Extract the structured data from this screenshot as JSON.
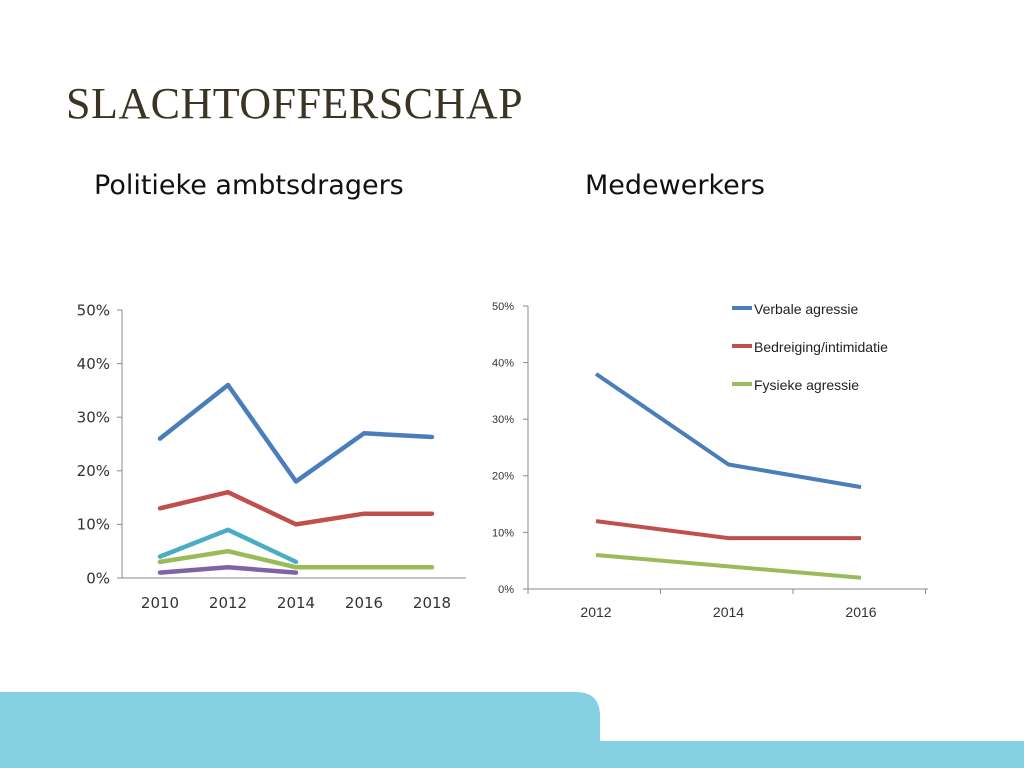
{
  "slide": {
    "title": "SLACHTOFFERSCHAP",
    "colors": {
      "band": "#86d1e1",
      "title": "#3a3424"
    }
  },
  "chart_data": [
    {
      "type": "line",
      "title": "Politieke ambtsdragers",
      "x": [
        2010,
        2012,
        2014,
        2016,
        2018
      ],
      "x_ticks": [
        "2010",
        "2012",
        "2014",
        "2016",
        "2018"
      ],
      "y_ticks": [
        "0%",
        "10%",
        "20%",
        "30%",
        "40%",
        "50%"
      ],
      "ylim": [
        0,
        50
      ],
      "grid": false,
      "series": [
        {
          "color": "#4a7ebb",
          "values": [
            26,
            36,
            18,
            27,
            26.3
          ]
        },
        {
          "color": "#c0504d",
          "values": [
            13,
            16,
            10,
            12,
            12
          ]
        },
        {
          "color": "#4bacc6",
          "values": [
            4,
            9,
            3,
            null,
            null
          ]
        },
        {
          "color": "#9bbb59",
          "values": [
            3,
            5,
            2,
            2,
            2
          ]
        },
        {
          "color": "#8064a2",
          "values": [
            1,
            2,
            1,
            null,
            null
          ]
        }
      ]
    },
    {
      "type": "line",
      "title": "Medewerkers",
      "x": [
        2012,
        2014,
        2016
      ],
      "x_ticks": [
        "2012",
        "2014",
        "2016"
      ],
      "y_ticks": [
        "0%",
        "10%",
        "20%",
        "30%",
        "40%",
        "50%"
      ],
      "ylim": [
        0,
        50
      ],
      "grid": false,
      "legend_position": "top-right",
      "series": [
        {
          "name": "Verbale agressie",
          "color": "#4a7ebb",
          "values": [
            38,
            22,
            18
          ]
        },
        {
          "name": "Bedreiging/intimidatie",
          "color": "#c0504d",
          "values": [
            12,
            9,
            9
          ]
        },
        {
          "name": "Fysieke agressie",
          "color": "#9bbb59",
          "values": [
            6,
            4,
            2
          ]
        }
      ]
    }
  ]
}
